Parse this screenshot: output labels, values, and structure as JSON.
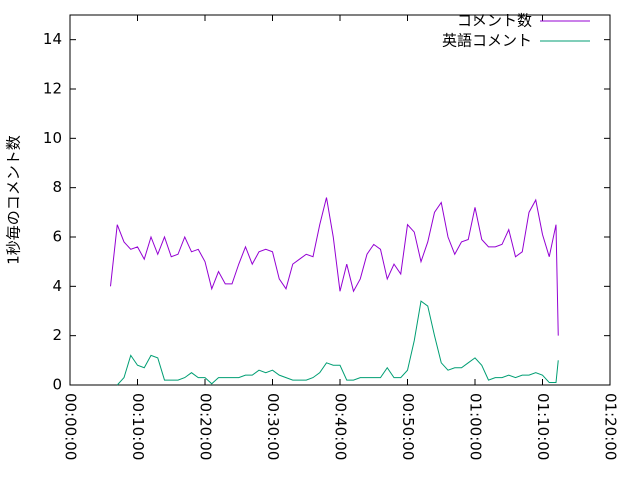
{
  "chart_data": {
    "type": "line",
    "ylabel": "1秒毎のコメント数",
    "xlim": [
      0,
      4800
    ],
    "xticks": [
      {
        "value": 0,
        "label": "00:00:00"
      },
      {
        "value": 600,
        "label": "00:10:00"
      },
      {
        "value": 1200,
        "label": "00:20:00"
      },
      {
        "value": 1800,
        "label": "00:30:00"
      },
      {
        "value": 2400,
        "label": "00:40:00"
      },
      {
        "value": 3000,
        "label": "00:50:00"
      },
      {
        "value": 3600,
        "label": "01:00:00"
      },
      {
        "value": 4200,
        "label": "01:10:00"
      },
      {
        "value": 4800,
        "label": "01:20:00"
      }
    ],
    "ylim": [
      0,
      15
    ],
    "yticks": [
      0,
      2,
      4,
      6,
      8,
      10,
      12,
      14
    ],
    "legend": "top-right",
    "x": [
      360,
      420,
      480,
      540,
      600,
      660,
      720,
      780,
      840,
      900,
      960,
      1020,
      1080,
      1140,
      1200,
      1260,
      1320,
      1380,
      1440,
      1500,
      1560,
      1620,
      1680,
      1740,
      1800,
      1860,
      1920,
      1980,
      2040,
      2100,
      2160,
      2220,
      2280,
      2340,
      2400,
      2460,
      2520,
      2580,
      2640,
      2700,
      2760,
      2820,
      2880,
      2940,
      3000,
      3060,
      3120,
      3180,
      3240,
      3300,
      3360,
      3420,
      3480,
      3540,
      3600,
      3660,
      3720,
      3780,
      3840,
      3900,
      3960,
      4020,
      4080,
      4140,
      4200,
      4260,
      4320,
      4340
    ],
    "series": [
      {
        "name": "コメント数",
        "color": "#9400d3",
        "values": [
          4.0,
          6.5,
          5.8,
          5.5,
          5.6,
          5.1,
          6.0,
          5.3,
          6.0,
          5.2,
          5.3,
          6.0,
          5.4,
          5.5,
          5.0,
          3.9,
          4.6,
          4.1,
          4.1,
          4.9,
          5.6,
          4.9,
          5.4,
          5.5,
          5.4,
          4.3,
          3.9,
          4.9,
          5.1,
          5.3,
          5.2,
          6.5,
          7.6,
          6.0,
          3.8,
          4.9,
          3.8,
          4.3,
          5.3,
          5.7,
          5.5,
          4.3,
          4.9,
          4.5,
          6.5,
          6.2,
          5.0,
          5.8,
          7.0,
          7.4,
          6.0,
          5.3,
          5.8,
          5.9,
          7.2,
          5.9,
          5.6,
          5.6,
          5.7,
          6.3,
          5.2,
          5.4,
          7.0,
          7.5,
          6.1,
          5.2,
          6.5,
          2.0
        ]
      },
      {
        "name": "英語コメント",
        "color": "#009e73",
        "values": [
          null,
          0,
          0.3,
          1.2,
          0.8,
          0.7,
          1.2,
          1.1,
          0.2,
          0.2,
          0.2,
          0.3,
          0.5,
          0.3,
          0.3,
          0.05,
          0.3,
          0.3,
          0.3,
          0.3,
          0.4,
          0.4,
          0.6,
          0.5,
          0.6,
          0.4,
          0.3,
          0.2,
          0.2,
          0.2,
          0.3,
          0.5,
          0.9,
          0.8,
          0.8,
          0.2,
          0.2,
          0.3,
          0.3,
          0.3,
          0.3,
          0.7,
          0.3,
          0.3,
          0.6,
          1.8,
          3.4,
          3.2,
          2.0,
          0.9,
          0.6,
          0.7,
          0.7,
          0.9,
          1.1,
          0.8,
          0.2,
          0.3,
          0.3,
          0.4,
          0.3,
          0.4,
          0.4,
          0.5,
          0.4,
          0.1,
          0.1,
          1.0
        ]
      }
    ]
  }
}
